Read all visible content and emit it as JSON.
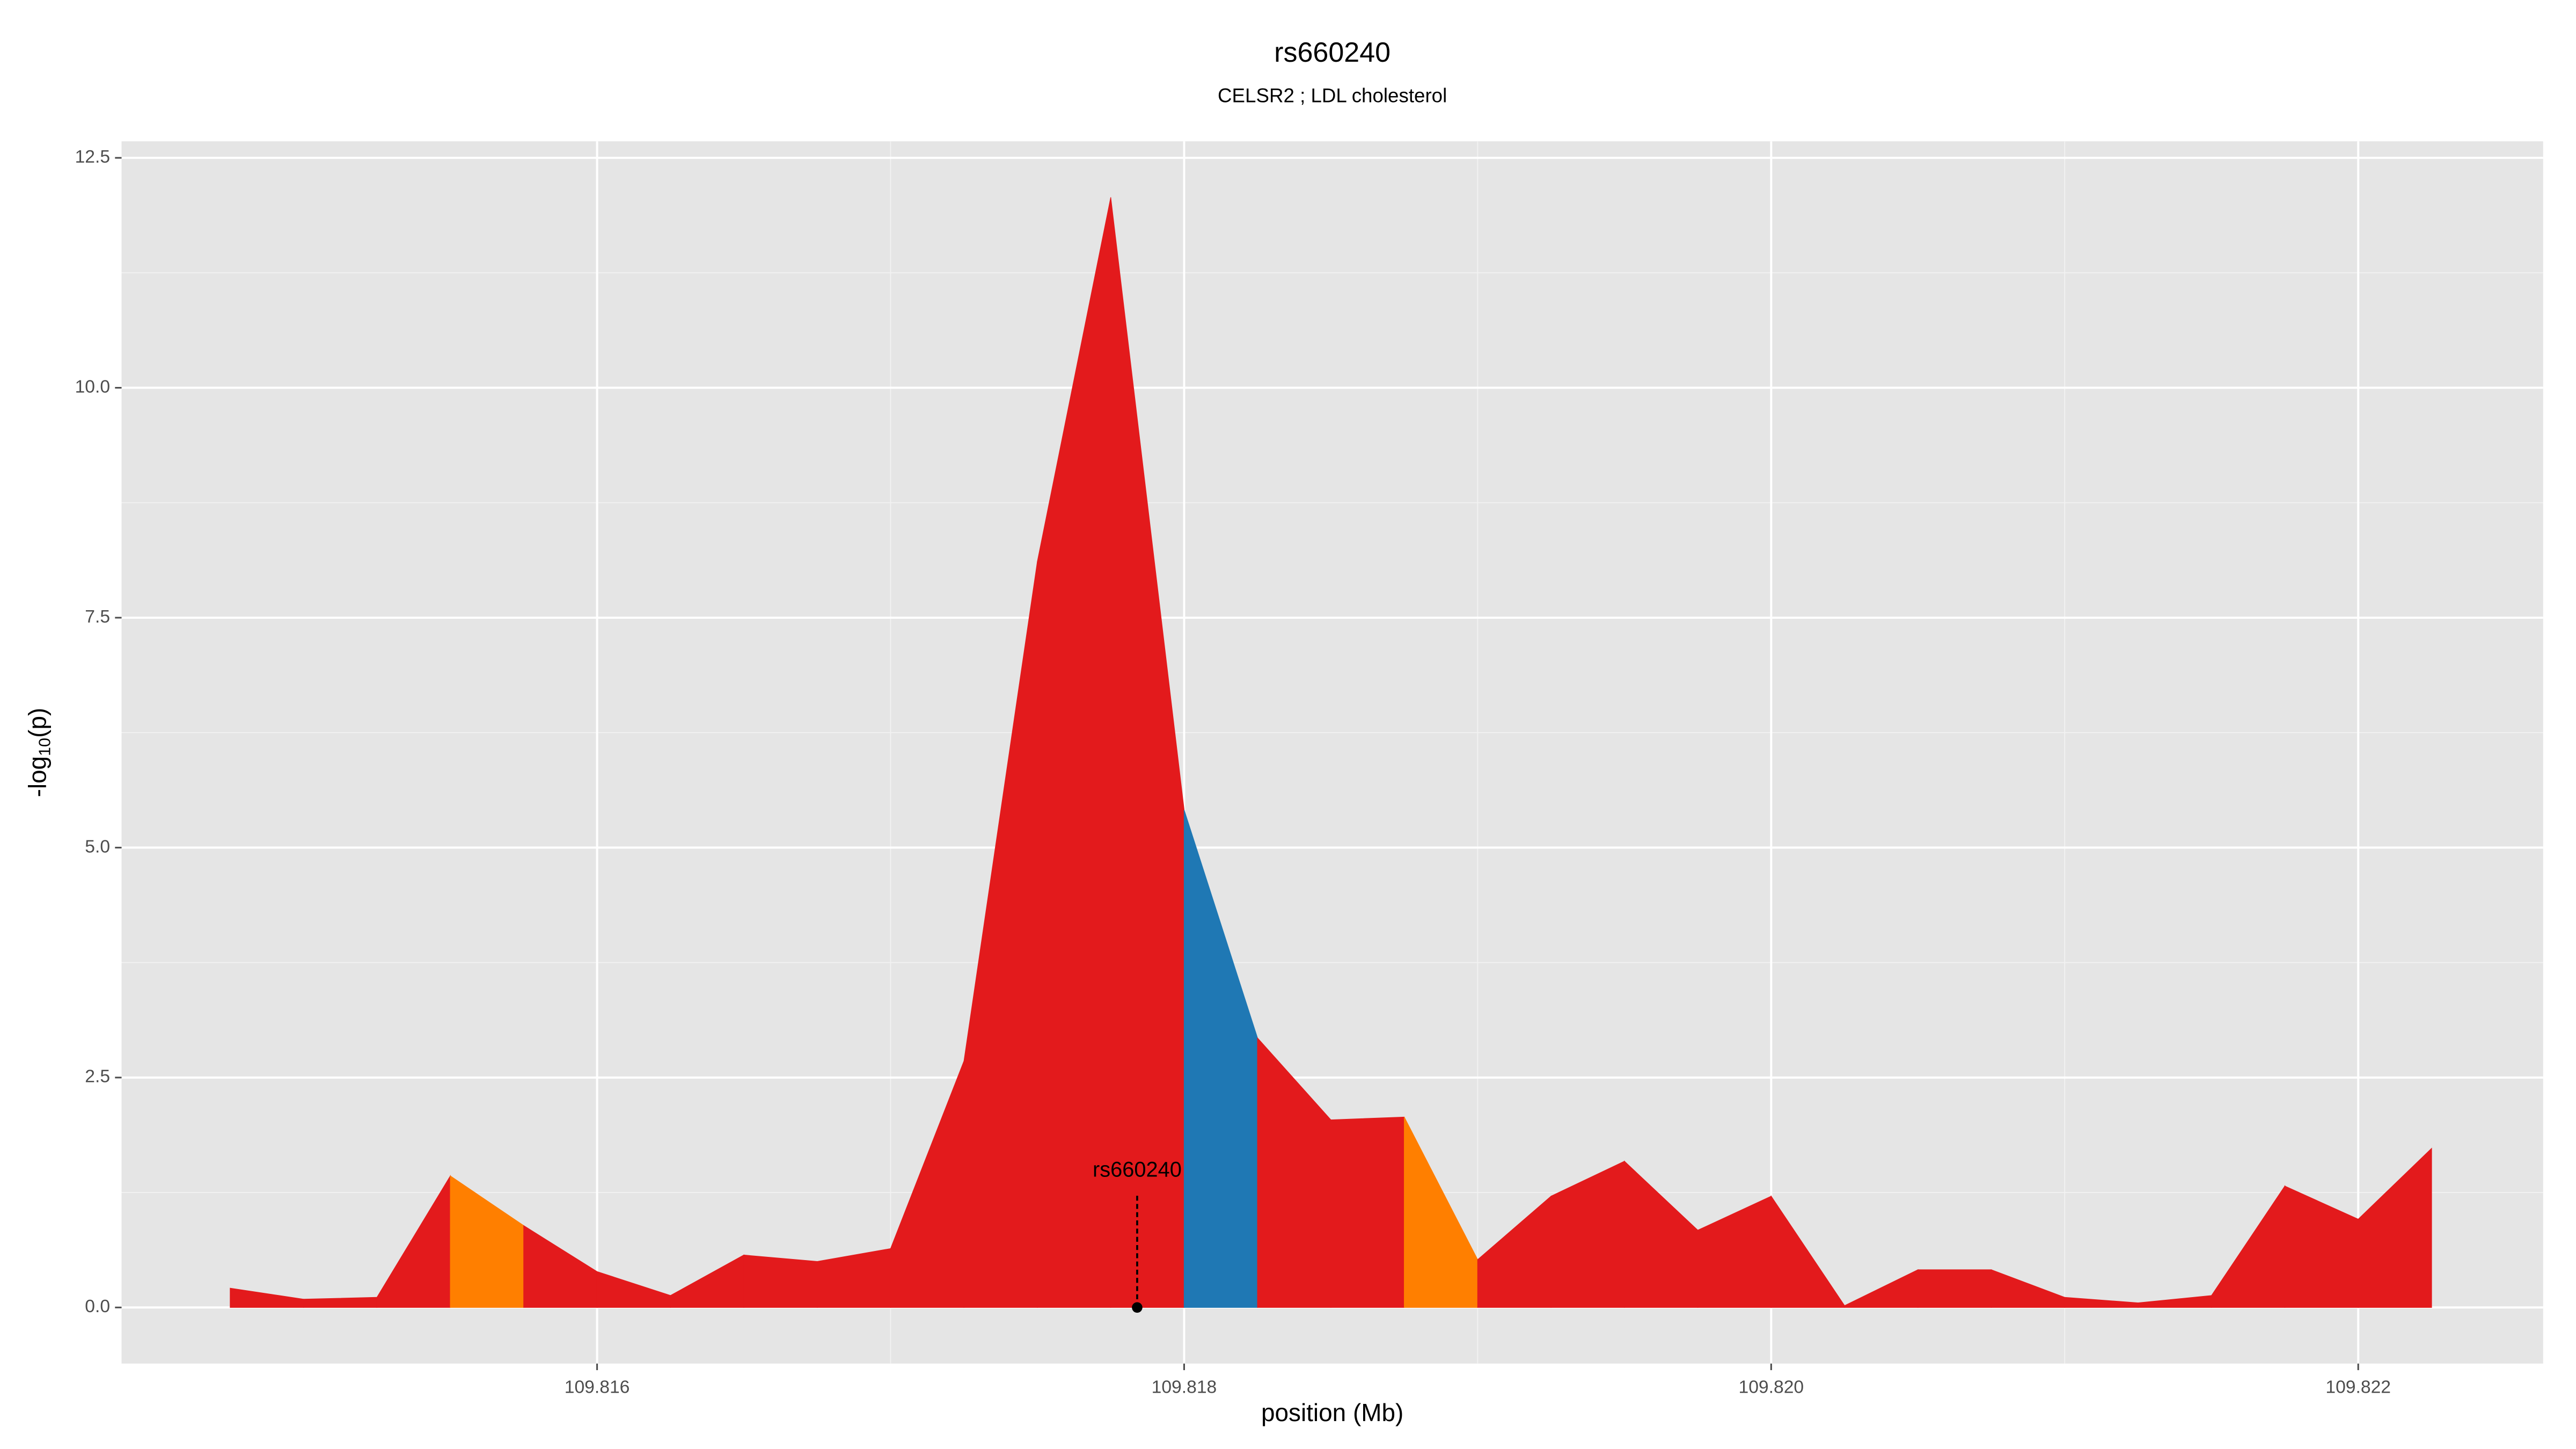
{
  "chart_data": {
    "type": "area",
    "title": "rs660240",
    "subtitle": "CELSR2 ; LDL cholesterol",
    "x_label": "position (Mb)",
    "y_label": {
      "text": "-log",
      "subscript": "10",
      "suffix": "(p)"
    },
    "x": [
      109.81475,
      109.815,
      109.81525,
      109.8155,
      109.81575,
      109.816,
      109.81625,
      109.8165,
      109.81675,
      109.817,
      109.81725,
      109.8175,
      109.81775,
      109.818,
      109.81825,
      109.8185,
      109.81875,
      109.819,
      109.81925,
      109.8195,
      109.81975,
      109.82,
      109.82025,
      109.8205,
      109.82075,
      109.821,
      109.82125,
      109.8215,
      109.82175,
      109.822,
      109.82225
    ],
    "values": [
      0.21,
      0.09,
      0.11,
      1.43,
      0.89,
      0.39,
      0.13,
      0.57,
      0.5,
      0.64,
      2.68,
      8.11,
      12.07,
      5.41,
      2.93,
      2.04,
      2.07,
      0.52,
      1.21,
      1.59,
      0.84,
      1.21,
      0.02,
      0.41,
      0.41,
      0.11,
      0.05,
      0.13,
      1.32,
      0.96,
      1.73
    ],
    "segment_colors": [
      "#e31a1c",
      "#e31a1c",
      "#e31a1c",
      "#ff7f00",
      "#e31a1c",
      "#e31a1c",
      "#e31a1c",
      "#e31a1c",
      "#e31a1c",
      "#e31a1c",
      "#e31a1c",
      "#e31a1c",
      "#e31a1c",
      "#1f78b4",
      "#e31a1c",
      "#e31a1c",
      "#ff7f00",
      "#e31a1c",
      "#e31a1c",
      "#e31a1c",
      "#e31a1c",
      "#e31a1c",
      "#e31a1c",
      "#e31a1c",
      "#e31a1c",
      "#e31a1c",
      "#e31a1c",
      "#e31a1c",
      "#e31a1c",
      "#e31a1c"
    ],
    "annotation": {
      "text": "rs660240",
      "x": 109.81784,
      "y": 0
    },
    "xlim": [
      109.81438,
      109.82263
    ],
    "ylim": [
      -0.61,
      12.68
    ],
    "xticks": [
      109.816,
      109.818,
      {
        "value": 109.82,
        "label": "109.820"
      },
      109.822
    ],
    "yticks": [
      {
        "value": 0,
        "label": "0.0"
      },
      2.5,
      {
        "value": 5,
        "label": "5.0"
      },
      7.5,
      {
        "value": 10,
        "label": "10.0"
      },
      12.5
    ],
    "grid": true
  }
}
